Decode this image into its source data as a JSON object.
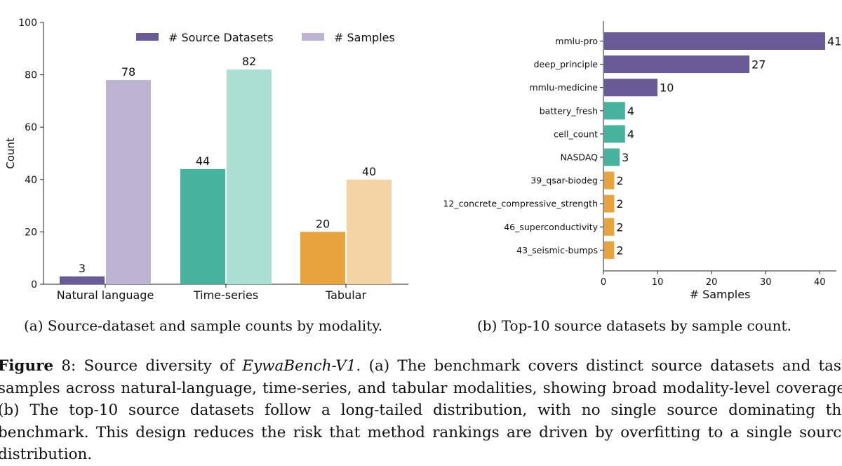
{
  "chart_data": [
    {
      "type": "bar",
      "categories": [
        "Natural language",
        "Time-series",
        "Tabular"
      ],
      "series": [
        {
          "name": "# Source Datasets",
          "values": [
            3,
            44,
            20
          ]
        },
        {
          "name": "# Samples",
          "values": [
            78,
            82,
            40
          ]
        }
      ],
      "ylabel": "Count",
      "xlabel": "",
      "ylim": [
        0,
        100
      ],
      "yticks": [
        0,
        20,
        40,
        60,
        80,
        100
      ],
      "legend_position": "top",
      "colors": {
        "source_datasets": [
          "#6a5a96",
          "#48b39d",
          "#e8a43c"
        ],
        "samples": [
          "#bcb3d2",
          "#aadfd2",
          "#f4d4a4"
        ],
        "legend": [
          "#6a5a96",
          "#bcb3d2"
        ]
      }
    },
    {
      "type": "bar",
      "orientation": "horizontal",
      "categories": [
        "mmlu-pro",
        "deep_principle",
        "mmlu-medicine",
        "battery_fresh",
        "cell_count",
        "NASDAQ",
        "39_qsar-biodeg",
        "12_concrete_compressive_strength",
        "46_superconductivity",
        "43_seismic-bumps"
      ],
      "values": [
        41,
        27,
        10,
        4,
        4,
        3,
        2,
        2,
        2,
        2
      ],
      "colors": [
        "#6a5a96",
        "#6a5a96",
        "#6a5a96",
        "#48b39d",
        "#48b39d",
        "#48b39d",
        "#e8a43c",
        "#e8a43c",
        "#e8a43c",
        "#e8a43c"
      ],
      "xlabel": "# Samples",
      "ylabel": "",
      "xlim": [
        0,
        43
      ],
      "xticks": [
        0,
        10,
        20,
        30,
        40
      ]
    }
  ],
  "captions": {
    "a": "(a) Source-dataset and sample counts by modality.",
    "b": "(b) Top-10 source datasets by sample count."
  },
  "figure_caption": {
    "label": "Figure",
    "number": " 8: Source diversity of ",
    "title_italic": "EywaBench-V1",
    "body": ". (a) The benchmark covers distinct source datasets and task samples across natural-language, time-series, and tabular modalities, showing broad modality-level coverage. (b) The top-10 source datasets follow a long-tailed distribution, with no single source dominating the benchmark. This design reduces the risk that method rankings are driven by overfitting to a single source distribution."
  }
}
